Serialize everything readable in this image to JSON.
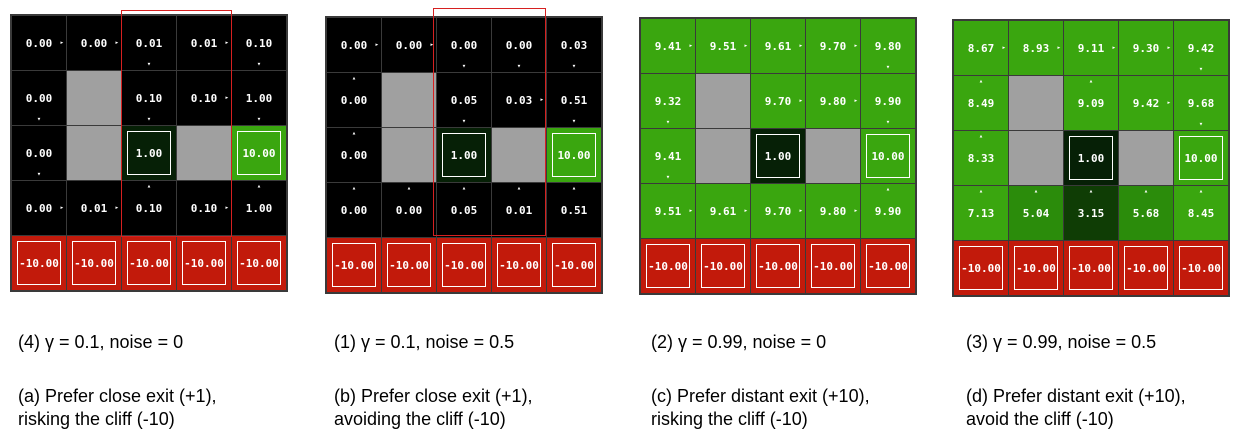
{
  "colors": {
    "black": "#000000",
    "wall": "#a0a0a0",
    "cliff": "#c21a0b",
    "exit_green": "#3aa60f",
    "exit_dark": "#062006",
    "bright_green": "#3aa60f",
    "mid_green": "#2b8c0b",
    "dark_green": "#1a5c08",
    "deep_green": "#0f3d05",
    "highlight": "#d62020"
  },
  "panels": [
    {
      "caption": "(4) γ = 0.1, noise = 0",
      "desc_line1": "(a) Prefer close exit (+1),",
      "desc_line2": "risking the cliff (-10)",
      "highlight": true,
      "grid": [
        [
          {
            "v": "0.00",
            "a": "E",
            "c": "black"
          },
          {
            "v": "0.00",
            "a": "E",
            "c": "black"
          },
          {
            "v": "0.01",
            "a": "S",
            "c": "black"
          },
          {
            "v": "0.01",
            "a": "E",
            "c": "black"
          },
          {
            "v": "0.10",
            "a": "S",
            "c": "black"
          }
        ],
        [
          {
            "v": "0.00",
            "a": "S",
            "c": "black"
          },
          {
            "t": "wall"
          },
          {
            "v": "0.10",
            "a": "S",
            "c": "black"
          },
          {
            "v": "0.10",
            "a": "E",
            "c": "black"
          },
          {
            "v": "1.00",
            "a": "S",
            "c": "black"
          }
        ],
        [
          {
            "v": "0.00",
            "a": "S",
            "c": "black"
          },
          {
            "t": "wall"
          },
          {
            "v": "1.00",
            "t": "exit",
            "c": "exit_dark"
          },
          {
            "t": "wall"
          },
          {
            "v": "10.00",
            "t": "exit",
            "c": "exit_green"
          }
        ],
        [
          {
            "v": "0.00",
            "a": "E",
            "c": "black"
          },
          {
            "v": "0.01",
            "a": "E",
            "c": "black"
          },
          {
            "v": "0.10",
            "a": "N",
            "c": "black"
          },
          {
            "v": "0.10",
            "a": "E",
            "c": "black"
          },
          {
            "v": "1.00",
            "a": "N",
            "c": "black"
          }
        ],
        [
          {
            "v": "-10.00",
            "t": "cliff"
          },
          {
            "v": "-10.00",
            "t": "cliff"
          },
          {
            "v": "-10.00",
            "t": "cliff"
          },
          {
            "v": "-10.00",
            "t": "cliff"
          },
          {
            "v": "-10.00",
            "t": "cliff"
          }
        ]
      ]
    },
    {
      "caption": "(1) γ = 0.1, noise = 0.5",
      "desc_line1": "(b) Prefer close exit (+1),",
      "desc_line2": "avoiding the cliff (-10)",
      "highlight": true,
      "grid": [
        [
          {
            "v": "0.00",
            "a": "E",
            "c": "black"
          },
          {
            "v": "0.00",
            "a": "E",
            "c": "black"
          },
          {
            "v": "0.00",
            "a": "S",
            "c": "black"
          },
          {
            "v": "0.00",
            "a": "S",
            "c": "black"
          },
          {
            "v": "0.03",
            "a": "S",
            "c": "black"
          }
        ],
        [
          {
            "v": "0.00",
            "a": "N",
            "c": "black"
          },
          {
            "t": "wall"
          },
          {
            "v": "0.05",
            "a": "S",
            "c": "black"
          },
          {
            "v": "0.03",
            "a": "E",
            "c": "black"
          },
          {
            "v": "0.51",
            "a": "S",
            "c": "black"
          }
        ],
        [
          {
            "v": "0.00",
            "a": "N",
            "c": "black"
          },
          {
            "t": "wall"
          },
          {
            "v": "1.00",
            "t": "exit",
            "c": "exit_dark"
          },
          {
            "t": "wall"
          },
          {
            "v": "10.00",
            "t": "exit",
            "c": "exit_green"
          }
        ],
        [
          {
            "v": "0.00",
            "a": "N",
            "c": "black"
          },
          {
            "v": "0.00",
            "a": "N",
            "c": "black"
          },
          {
            "v": "0.05",
            "a": "N",
            "c": "black"
          },
          {
            "v": "0.01",
            "a": "N",
            "c": "black"
          },
          {
            "v": "0.51",
            "a": "N",
            "c": "black"
          }
        ],
        [
          {
            "v": "-10.00",
            "t": "cliff"
          },
          {
            "v": "-10.00",
            "t": "cliff"
          },
          {
            "v": "-10.00",
            "t": "cliff"
          },
          {
            "v": "-10.00",
            "t": "cliff"
          },
          {
            "v": "-10.00",
            "t": "cliff"
          }
        ]
      ]
    },
    {
      "caption": "(2) γ = 0.99, noise = 0",
      "desc_line1": "(c) Prefer distant exit (+10),",
      "desc_line2": "risking the cliff (-10)",
      "highlight": false,
      "grid": [
        [
          {
            "v": "9.41",
            "a": "E",
            "c": "bright_green"
          },
          {
            "v": "9.51",
            "a": "E",
            "c": "bright_green"
          },
          {
            "v": "9.61",
            "a": "E",
            "c": "bright_green"
          },
          {
            "v": "9.70",
            "a": "E",
            "c": "bright_green"
          },
          {
            "v": "9.80",
            "a": "S",
            "c": "bright_green"
          }
        ],
        [
          {
            "v": "9.32",
            "a": "S",
            "c": "bright_green"
          },
          {
            "t": "wall"
          },
          {
            "v": "9.70",
            "a": "E",
            "c": "bright_green"
          },
          {
            "v": "9.80",
            "a": "E",
            "c": "bright_green"
          },
          {
            "v": "9.90",
            "a": "S",
            "c": "bright_green"
          }
        ],
        [
          {
            "v": "9.41",
            "a": "S",
            "c": "bright_green"
          },
          {
            "t": "wall"
          },
          {
            "v": "1.00",
            "t": "exit",
            "c": "exit_dark"
          },
          {
            "t": "wall"
          },
          {
            "v": "10.00",
            "t": "exit",
            "c": "exit_green"
          }
        ],
        [
          {
            "v": "9.51",
            "a": "E",
            "c": "bright_green"
          },
          {
            "v": "9.61",
            "a": "E",
            "c": "bright_green"
          },
          {
            "v": "9.70",
            "a": "E",
            "c": "bright_green"
          },
          {
            "v": "9.80",
            "a": "E",
            "c": "bright_green"
          },
          {
            "v": "9.90",
            "a": "N",
            "c": "bright_green"
          }
        ],
        [
          {
            "v": "-10.00",
            "t": "cliff"
          },
          {
            "v": "-10.00",
            "t": "cliff"
          },
          {
            "v": "-10.00",
            "t": "cliff"
          },
          {
            "v": "-10.00",
            "t": "cliff"
          },
          {
            "v": "-10.00",
            "t": "cliff"
          }
        ]
      ]
    },
    {
      "caption": "(3) γ = 0.99, noise = 0.5",
      "desc_line1": "(d) Prefer distant exit (+10),",
      "desc_line2": "avoid the cliff (-10)",
      "highlight": false,
      "grid": [
        [
          {
            "v": "8.67",
            "a": "E",
            "c": "bright_green"
          },
          {
            "v": "8.93",
            "a": "E",
            "c": "bright_green"
          },
          {
            "v": "9.11",
            "a": "E",
            "c": "bright_green"
          },
          {
            "v": "9.30",
            "a": "E",
            "c": "bright_green"
          },
          {
            "v": "9.42",
            "a": "S",
            "c": "bright_green"
          }
        ],
        [
          {
            "v": "8.49",
            "a": "N",
            "c": "bright_green"
          },
          {
            "t": "wall"
          },
          {
            "v": "9.09",
            "a": "N",
            "c": "bright_green"
          },
          {
            "v": "9.42",
            "a": "E",
            "c": "bright_green"
          },
          {
            "v": "9.68",
            "a": "S",
            "c": "bright_green"
          }
        ],
        [
          {
            "v": "8.33",
            "a": "N",
            "c": "bright_green"
          },
          {
            "t": "wall"
          },
          {
            "v": "1.00",
            "t": "exit",
            "c": "exit_dark"
          },
          {
            "t": "wall"
          },
          {
            "v": "10.00",
            "t": "exit",
            "c": "exit_green"
          }
        ],
        [
          {
            "v": "7.13",
            "a": "N",
            "c": "bright_green"
          },
          {
            "v": "5.04",
            "a": "N",
            "c": "mid_green"
          },
          {
            "v": "3.15",
            "a": "N",
            "c": "deep_green"
          },
          {
            "v": "5.68",
            "a": "N",
            "c": "mid_green"
          },
          {
            "v": "8.45",
            "a": "N",
            "c": "bright_green"
          }
        ],
        [
          {
            "v": "-10.00",
            "t": "cliff"
          },
          {
            "v": "-10.00",
            "t": "cliff"
          },
          {
            "v": "-10.00",
            "t": "cliff"
          },
          {
            "v": "-10.00",
            "t": "cliff"
          },
          {
            "v": "-10.00",
            "t": "cliff"
          }
        ]
      ]
    }
  ]
}
